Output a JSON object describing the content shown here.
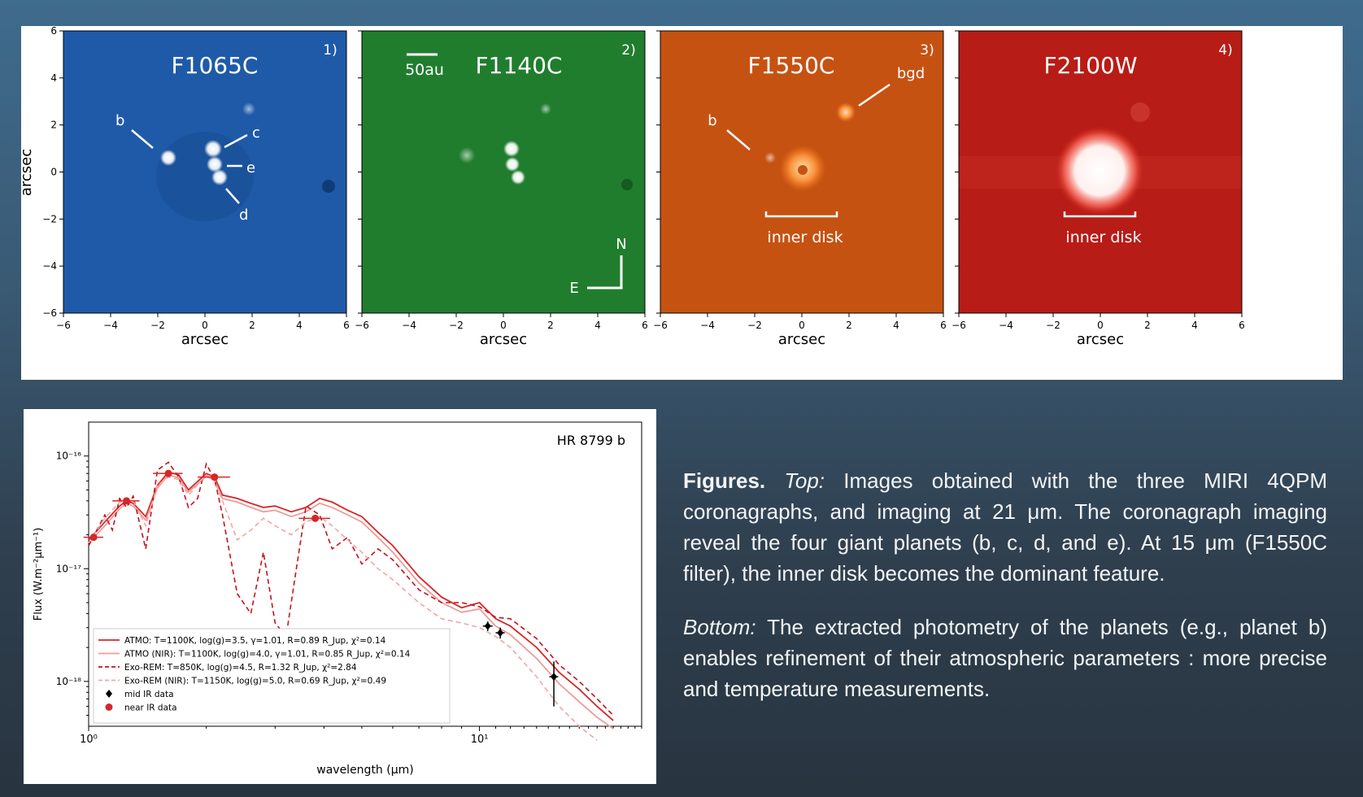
{
  "top": {
    "panels": [
      {
        "filter": "F1065C",
        "index": "1)",
        "bg": "#1e58a6",
        "dark": "#123e7c",
        "labels": [
          "b",
          "c",
          "e",
          "d"
        ]
      },
      {
        "filter": "F1140C",
        "index": "2)",
        "bg": "#1f7a2c",
        "dark": "#145a1e",
        "scale_label": "50au",
        "compass_n": "N",
        "compass_e": "E"
      },
      {
        "filter": "F1550C",
        "index": "3)",
        "bg": "#c25010",
        "dark": "#9a3c08",
        "labels": [
          "b",
          "bgd"
        ],
        "bracket_label": "inner disk"
      },
      {
        "filter": "F2100W",
        "index": "4)",
        "bg": "#b51a14",
        "dark": "#8a100c",
        "bracket_label": "inner disk"
      }
    ],
    "xlabel": "arcsec",
    "ylabel": "arcsec",
    "ticks": [
      "−6",
      "−4",
      "−2",
      "0",
      "2",
      "4",
      "6"
    ],
    "ytick_labels": [
      "6",
      "4",
      "2",
      "0",
      "−2",
      "−4",
      "−6"
    ]
  },
  "chart_data": {
    "type": "line",
    "title": "HR 8799 b",
    "xlabel": "wavelength (μm)",
    "ylabel": "Flux (W.m⁻²μm⁻¹)",
    "x_scale": "log",
    "y_scale": "log",
    "xlim": [
      1.0,
      26.0
    ],
    "ylim": [
      4e-19,
      2e-16
    ],
    "x_tick_labels": [
      "10⁰",
      "10¹"
    ],
    "y_tick_labels": [
      "10⁻¹⁶",
      "10⁻¹⁷",
      "10⁻¹⁸"
    ],
    "legend_position": "lower-left",
    "series": [
      {
        "name": "ATMO: T=1100K, log(g)=3.5, γ=1.01, R=0.89 R_Jup, χ²=0.14",
        "style": "solid",
        "color": "#d62728",
        "x": [
          1.0,
          1.1,
          1.2,
          1.25,
          1.3,
          1.4,
          1.5,
          1.6,
          1.7,
          1.8,
          2.0,
          2.1,
          2.2,
          2.4,
          2.6,
          2.8,
          3.0,
          3.3,
          3.6,
          3.9,
          4.2,
          4.6,
          5.0,
          5.5,
          6.0,
          7.0,
          8.0,
          9.0,
          10.0,
          11.0,
          12.0,
          14.0,
          16.0,
          18.0,
          20.0,
          22.0
        ],
        "y": [
          1.8e-17,
          2.6e-17,
          3.6e-17,
          4e-17,
          3.8e-17,
          2.9e-17,
          5.5e-17,
          7.2e-17,
          6.8e-17,
          5e-17,
          7e-17,
          6.5e-17,
          4.5e-17,
          4.2e-17,
          3.8e-17,
          3.5e-17,
          3.6e-17,
          3.2e-17,
          3.5e-17,
          4.2e-17,
          3.9e-17,
          3.3e-17,
          2.9e-17,
          2.1e-17,
          1.6e-17,
          8.5e-18,
          5.6e-18,
          4.5e-18,
          5e-18,
          3.6e-18,
          3.1e-18,
          2e-18,
          1.2e-18,
          8.5e-19,
          6e-19,
          4.5e-19
        ]
      },
      {
        "name": "ATMO (NIR): T=1100K, log(g)=4.0, γ=1.01, R=0.85 R_Jup, χ²=0.14",
        "style": "solid",
        "color": "#f09a9a",
        "x": [
          1.0,
          1.1,
          1.2,
          1.25,
          1.3,
          1.4,
          1.5,
          1.6,
          1.7,
          1.8,
          2.0,
          2.1,
          2.2,
          2.4,
          2.6,
          2.8,
          3.0,
          3.3,
          3.6,
          3.9,
          4.2,
          4.6,
          5.0,
          5.5,
          6.0,
          7.0,
          8.0,
          9.0,
          10.0,
          11.0,
          12.0,
          14.0,
          16.0,
          18.0,
          20.0,
          22.0
        ],
        "y": [
          1.7e-17,
          2.4e-17,
          3.4e-17,
          3.8e-17,
          3.6e-17,
          2.7e-17,
          5.2e-17,
          6.8e-17,
          6.4e-17,
          4.8e-17,
          6.6e-17,
          6.1e-17,
          4.2e-17,
          3.9e-17,
          3.5e-17,
          3.2e-17,
          3.3e-17,
          2.9e-17,
          3.2e-17,
          3.8e-17,
          3.5e-17,
          3e-17,
          2.6e-17,
          1.9e-17,
          1.4e-17,
          7.5e-18,
          5e-18,
          4.1e-18,
          4.4e-18,
          3.1e-18,
          2.6e-18,
          1.6e-18,
          9.5e-19,
          6.6e-19,
          4.8e-19,
          3.8e-19
        ]
      },
      {
        "name": "Exo-REM: T=850K, log(g)=4.5, R=1.32 R_Jup, χ²=2.84",
        "style": "dashed",
        "color": "#c9101b",
        "x": [
          1.0,
          1.1,
          1.15,
          1.2,
          1.25,
          1.3,
          1.4,
          1.5,
          1.6,
          1.7,
          1.8,
          1.9,
          2.0,
          2.1,
          2.2,
          2.4,
          2.6,
          2.8,
          3.0,
          3.2,
          3.4,
          3.6,
          3.9,
          4.2,
          4.6,
          5.0,
          5.5,
          6.0,
          7.0,
          8.0,
          9.0,
          10.0,
          11.0,
          12.0,
          14.0,
          16.0,
          18.0,
          20.0,
          22.0
        ],
        "y": [
          1.6e-17,
          3e-17,
          2.2e-17,
          4.2e-17,
          3.5e-17,
          4.4e-17,
          1.5e-17,
          7.5e-17,
          8.8e-17,
          6.5e-17,
          3.5e-17,
          4.2e-17,
          8.5e-17,
          6.2e-17,
          3e-17,
          6e-18,
          4e-18,
          1.4e-17,
          3.3e-18,
          2.5e-18,
          1e-17,
          3.6e-17,
          3e-17,
          1.5e-17,
          1.9e-17,
          1.1e-17,
          1.5e-17,
          1.2e-17,
          6.5e-18,
          5e-18,
          5e-18,
          4.6e-18,
          3.7e-18,
          3.6e-18,
          2.4e-18,
          1.4e-18,
          1e-18,
          7e-19,
          5e-19
        ]
      },
      {
        "name": "Exo-REM (NIR): T=1150K, log(g)=5.0, R=0.69 R_Jup, χ²=0.49",
        "style": "dashed",
        "color": "#f3a5a5",
        "x": [
          1.0,
          1.1,
          1.2,
          1.3,
          1.4,
          1.5,
          1.6,
          1.7,
          1.8,
          2.0,
          2.1,
          2.2,
          2.4,
          2.6,
          2.8,
          3.0,
          3.3,
          3.6,
          3.9,
          4.2,
          4.6,
          5.0,
          5.5,
          6.0,
          7.0,
          8.0,
          9.0,
          10.0,
          11.0,
          12.0,
          14.0,
          16.0,
          18.0,
          20.0
        ],
        "y": [
          1.7e-17,
          2.8e-17,
          3.9e-17,
          4e-17,
          2.4e-17,
          5.5e-17,
          6.5e-17,
          6.2e-17,
          4.5e-17,
          6.8e-17,
          6e-17,
          4e-17,
          1.8e-17,
          2.2e-17,
          2.8e-17,
          2.4e-17,
          2e-17,
          2.6e-17,
          2.9e-17,
          2.4e-17,
          1.8e-17,
          1.4e-17,
          1e-17,
          8e-18,
          5e-18,
          3.6e-18,
          3.3e-18,
          3e-18,
          2.5e-18,
          2e-18,
          1.1e-18,
          6e-19,
          4e-19,
          3e-19
        ]
      }
    ],
    "points": [
      {
        "name": "mid IR data",
        "marker": "diamond",
        "color": "#000000",
        "x": [
          10.5,
          11.3,
          15.5
        ],
        "y": [
          3.1e-18,
          2.7e-18,
          1.1e-18
        ],
        "xerr": [
          0.3,
          0.3,
          0.4
        ],
        "yerr_lo": [
          3e-19,
          3e-19,
          5e-19
        ],
        "yerr_hi": [
          3e-19,
          3e-19,
          4e-19
        ]
      },
      {
        "name": "near IR data",
        "marker": "circle",
        "color": "#d62728",
        "x": [
          1.03,
          1.25,
          1.6,
          2.1,
          3.8
        ],
        "y": [
          1.9e-17,
          4e-17,
          7e-17,
          6.5e-17,
          2.8e-17
        ],
        "xerr": [
          0.06,
          0.1,
          0.14,
          0.2,
          0.35
        ],
        "yerr_lo": [
          0,
          0,
          0,
          0,
          0
        ],
        "yerr_hi": [
          0,
          0,
          0,
          0,
          0
        ]
      }
    ]
  },
  "caption": {
    "lead": "Figures.",
    "top_tag": "Top:",
    "top_text": " Images obtained with the three MIRI 4QPM coronagraphs, and imaging at 21 μm. The coronagraph imaging reveal the four giant planets (b, c, d, and e). At 15 μm (F1550C filter), the inner disk becomes the dominant feature.",
    "bottom_tag": "Bottom:",
    "bottom_text": " The extracted photometry of the planets (e.g., planet b) enables refinement of their atmospheric parameters : more precise and temperature measurements."
  }
}
